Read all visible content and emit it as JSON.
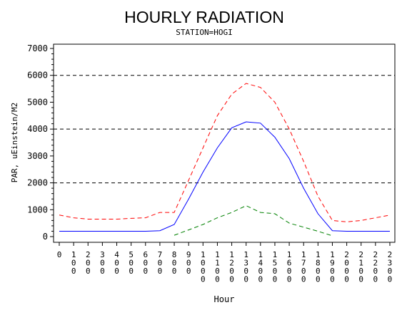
{
  "chart_data": {
    "type": "line",
    "title": "HOURLY RADIATION",
    "subtitle": "STATION=HOGI",
    "xlabel": "Hour",
    "ylabel": "PAR, uEinstein/M2",
    "ylim": [
      0,
      7000
    ],
    "y_ticks": [
      "0",
      "1000",
      "2000",
      "3000",
      "4000",
      "5000",
      "6000",
      "7000"
    ],
    "y_tick_values": [
      0,
      1000,
      2000,
      3000,
      4000,
      5000,
      6000,
      7000
    ],
    "gridlines": [
      2000,
      4000,
      6000
    ],
    "x": [
      0,
      100,
      200,
      300,
      400,
      500,
      600,
      700,
      800,
      900,
      1000,
      1100,
      1200,
      1300,
      1400,
      1500,
      1600,
      1700,
      1800,
      1900,
      2000,
      2100,
      2200,
      2300
    ],
    "x_tick_labels": [
      "0",
      "100",
      "200",
      "300",
      "400",
      "500",
      "600",
      "700",
      "800",
      "900",
      "1000",
      "1100",
      "1200",
      "1300",
      "1400",
      "1500",
      "1600",
      "1700",
      "1800",
      "1900",
      "2000",
      "2100",
      "2200",
      "2300"
    ],
    "series": [
      {
        "color": "#ff0000",
        "dash": "dashed",
        "values": [
          800,
          700,
          650,
          650,
          650,
          680,
          700,
          900,
          900,
          2100,
          3300,
          4500,
          5300,
          5700,
          5550,
          5000,
          4000,
          2800,
          1500,
          600,
          550,
          600,
          700,
          800
        ]
      },
      {
        "color": "#0000ff",
        "dash": "solid",
        "values": [
          200,
          200,
          200,
          200,
          200,
          200,
          200,
          220,
          450,
          1400,
          2400,
          3300,
          4050,
          4270,
          4220,
          3700,
          2900,
          1800,
          850,
          220,
          200,
          200,
          200,
          200
        ]
      },
      {
        "color": "#008000",
        "dash": "dashed",
        "values": [
          null,
          null,
          null,
          null,
          null,
          null,
          null,
          null,
          50,
          250,
          450,
          700,
          900,
          1150,
          900,
          850,
          500,
          350,
          200,
          30,
          null,
          null,
          null,
          null
        ]
      }
    ]
  }
}
